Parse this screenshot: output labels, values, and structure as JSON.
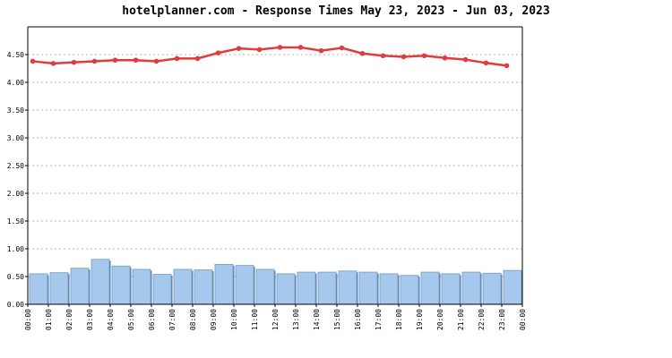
{
  "chart_data": {
    "type": "bar+line",
    "title": "hotelplanner.com - Response Times May 23, 2023 - Jun 03, 2023",
    "xlabel": "",
    "ylabel": "",
    "ylim": [
      0,
      5
    ],
    "yticks": [
      "0.00",
      "0.50",
      "1.00",
      "1.50",
      "2.00",
      "2.50",
      "3.00",
      "3.50",
      "4.00",
      "4.50"
    ],
    "xticks": [
      "00:00",
      "01:00",
      "02:00",
      "03:00",
      "04:00",
      "05:00",
      "06:00",
      "07:00",
      "08:00",
      "09:00",
      "10:00",
      "11:00",
      "12:00",
      "13:00",
      "14:00",
      "15:00",
      "16:00",
      "17:00",
      "18:00",
      "19:00",
      "20:00",
      "21:00",
      "22:00",
      "23:00",
      "00:00"
    ],
    "grid": "horizontal dotted",
    "series": [
      {
        "kind": "bar",
        "color": "#a6c8ec",
        "values": [
          0.55,
          0.57,
          0.65,
          0.81,
          0.69,
          0.63,
          0.54,
          0.63,
          0.62,
          0.72,
          0.7,
          0.63,
          0.55,
          0.58,
          0.58,
          0.6,
          0.58,
          0.55,
          0.52,
          0.58,
          0.55,
          0.58,
          0.56,
          0.61
        ]
      },
      {
        "kind": "line",
        "color": "#e03c3c",
        "values": [
          4.38,
          4.34,
          4.36,
          4.38,
          4.4,
          4.4,
          4.38,
          4.43,
          4.43,
          4.53,
          4.61,
          4.59,
          4.63,
          4.63,
          4.57,
          4.62,
          4.52,
          4.48,
          4.46,
          4.48,
          4.44,
          4.41,
          4.35,
          4.3
        ]
      }
    ]
  }
}
